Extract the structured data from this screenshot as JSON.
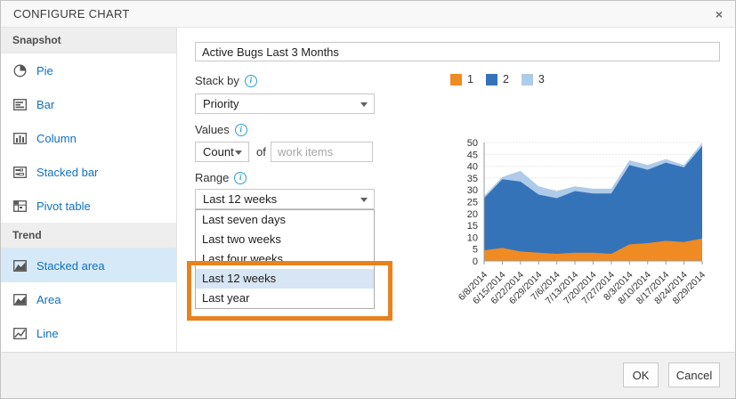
{
  "dialog": {
    "title": "CONFIGURE CHART",
    "close_glyph": "×"
  },
  "sidebar": {
    "sections": [
      {
        "header": "Snapshot",
        "items": [
          {
            "label": "Pie",
            "icon": "pie-icon",
            "selected": false
          },
          {
            "label": "Bar",
            "icon": "bar-icon",
            "selected": false
          },
          {
            "label": "Column",
            "icon": "column-icon",
            "selected": false
          },
          {
            "label": "Stacked bar",
            "icon": "stacked-bar-icon",
            "selected": false
          },
          {
            "label": "Pivot table",
            "icon": "pivot-table-icon",
            "selected": false
          }
        ]
      },
      {
        "header": "Trend",
        "items": [
          {
            "label": "Stacked area",
            "icon": "stacked-area-icon",
            "selected": true
          },
          {
            "label": "Area",
            "icon": "area-icon",
            "selected": false
          },
          {
            "label": "Line",
            "icon": "line-icon",
            "selected": false
          }
        ]
      }
    ]
  },
  "form": {
    "name_value": "Active Bugs Last 3 Months",
    "stack_by": {
      "label": "Stack by",
      "value": "Priority"
    },
    "values": {
      "label": "Values",
      "aggregation": "Count",
      "of_label": "of",
      "field_placeholder": "work items"
    },
    "range": {
      "label": "Range",
      "value": "Last 12 weeks",
      "options": [
        "Last seven days",
        "Last two weeks",
        "Last four weeks",
        "Last 12 weeks",
        "Last year"
      ],
      "highlighted_option": "Last 12 weeks"
    }
  },
  "annotation": {
    "highlight_color": "#E8821E"
  },
  "chart_data": {
    "type": "area",
    "stacked": true,
    "title": "",
    "xlabel": "",
    "ylabel": "",
    "x": [
      "6/8/2014",
      "6/15/2014",
      "6/22/2014",
      "6/29/2014",
      "7/6/2014",
      "7/13/2014",
      "7/20/2014",
      "7/27/2014",
      "8/3/2014",
      "8/10/2014",
      "8/17/2014",
      "8/24/2014",
      "8/29/2014"
    ],
    "series": [
      {
        "name": "1",
        "color": "#EF8B22",
        "values": [
          4.5,
          5.5,
          4,
          3.5,
          3,
          3.5,
          3.5,
          3,
          7,
          7.5,
          8.5,
          8,
          9.5
        ]
      },
      {
        "name": "2",
        "color": "#3573B9",
        "values": [
          22,
          29,
          29.5,
          24.5,
          23.5,
          26,
          25,
          25.5,
          33.5,
          31,
          33,
          31.5,
          39
        ]
      },
      {
        "name": "3",
        "color": "#AFCBEA",
        "values": [
          1,
          1,
          4.5,
          3.5,
          3,
          2,
          2,
          2,
          2,
          2,
          1.5,
          1,
          1.5
        ]
      }
    ],
    "stacked_totals": [
      27.5,
      35.5,
      38,
      31.5,
      29.5,
      31.5,
      30.5,
      30.5,
      42.5,
      40.5,
      43,
      40.5,
      50
    ],
    "ylim": [
      0,
      50
    ],
    "ytick_step": 5,
    "grid": "dotted-horizontal",
    "legend_position": "top"
  },
  "footer": {
    "ok_label": "OK",
    "cancel_label": "Cancel"
  }
}
